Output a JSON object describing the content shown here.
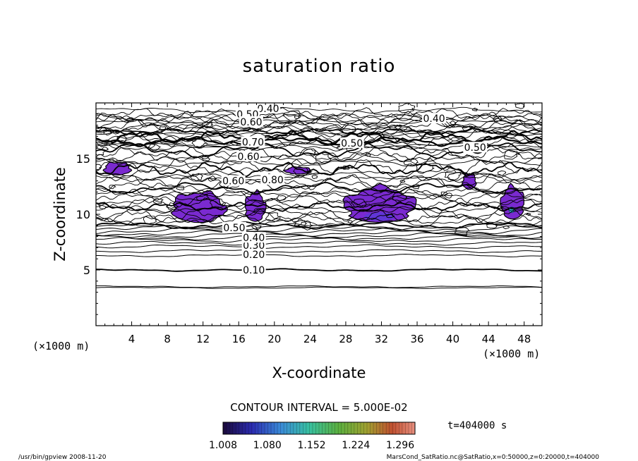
{
  "chart_data": {
    "type": "contour",
    "title": "saturation ratio",
    "xlabel": "X-coordinate",
    "ylabel": "Z-coordinate",
    "x_unit_label": "(×1000 m)",
    "y_unit_label": "(×1000 m)",
    "xlim": [
      0,
      50
    ],
    "ylim": [
      0,
      20
    ],
    "x_ticks": [
      4,
      8,
      12,
      16,
      20,
      24,
      28,
      32,
      36,
      40,
      44,
      48
    ],
    "y_ticks": [
      5,
      10,
      15
    ],
    "contour_interval_text": "CONTOUR INTERVAL = 5.000E-02",
    "contour_labels": [
      {
        "text": "0.10",
        "x": 17.7,
        "z": 5.0
      },
      {
        "text": "0.20",
        "x": 17.7,
        "z": 6.4
      },
      {
        "text": "0.30",
        "x": 17.7,
        "z": 7.2
      },
      {
        "text": "0.40",
        "x": 17.7,
        "z": 7.9
      },
      {
        "text": "0.50",
        "x": 15.5,
        "z": 8.8
      },
      {
        "text": "0.40",
        "x": 19.3,
        "z": 19.5
      },
      {
        "text": "0.50",
        "x": 17.0,
        "z": 19.0
      },
      {
        "text": "0.60",
        "x": 17.4,
        "z": 18.3
      },
      {
        "text": "0.70",
        "x": 17.6,
        "z": 16.5
      },
      {
        "text": "0.60",
        "x": 17.1,
        "z": 15.2
      },
      {
        "text": "0.60",
        "x": 15.4,
        "z": 13.0
      },
      {
        "text": "0.80",
        "x": 19.8,
        "z": 13.1
      },
      {
        "text": "0.40",
        "x": 37.9,
        "z": 18.6
      },
      {
        "text": "0.50",
        "x": 28.7,
        "z": 16.4
      },
      {
        "text": "0.50",
        "x": 42.5,
        "z": 16.0
      }
    ],
    "shaded_regions": [
      {
        "x": [
          0.9,
          3.9
        ],
        "z": [
          13.5,
          14.6
        ]
      },
      {
        "x": [
          8.5,
          14.5
        ],
        "z": [
          9.2,
          11.8
        ]
      },
      {
        "x": [
          16.7,
          19.0
        ],
        "z": [
          9.3,
          11.8
        ]
      },
      {
        "x": [
          27.8,
          35.8
        ],
        "z": [
          9.2,
          12.2
        ]
      },
      {
        "x": [
          45.4,
          48.0
        ],
        "z": [
          9.5,
          12.3
        ]
      },
      {
        "x": [
          21.2,
          24.1
        ],
        "z": [
          13.6,
          14.2
        ]
      },
      {
        "x": [
          41.1,
          42.6
        ],
        "z": [
          12.2,
          13.6
        ]
      }
    ],
    "colorbar": {
      "ticks": [
        "1.008",
        "1.080",
        "1.152",
        "1.224",
        "1.296"
      ],
      "range": [
        1.008,
        1.32
      ]
    },
    "time_label": "t=404000 s"
  },
  "footer": {
    "left": "/usr/bin/gpview   2008-11-20",
    "right": "MarsCond_SatRatio.nc@SatRatio,x=0:50000,z=0:20000,t=404000"
  }
}
